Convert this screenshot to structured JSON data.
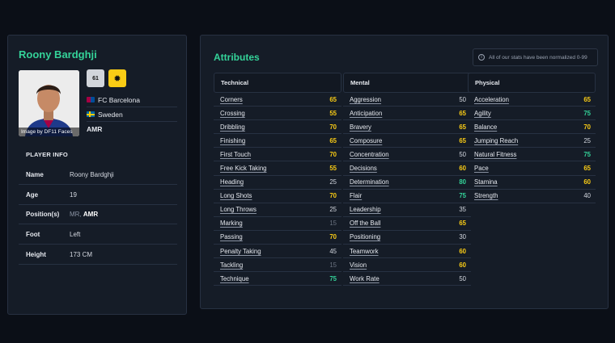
{
  "player": {
    "name": "Roony Bardghji",
    "photo_credit": "Image by DF11 Faces",
    "ovr": "61",
    "potential_icon": "star-badge-icon",
    "club": "FC Barcelona",
    "nation": "Sweden",
    "position": "AMR"
  },
  "player_info": {
    "title": "PLAYER INFO",
    "rows": [
      {
        "label": "Name",
        "value": "Roony Bardghji"
      },
      {
        "label": "Age",
        "value": "19"
      },
      {
        "label": "Position(s)",
        "value_secondary": "MR,",
        "value_primary": "AMR"
      },
      {
        "label": "Foot",
        "value": "Left"
      },
      {
        "label": "Height",
        "value": "173 CM"
      }
    ]
  },
  "attributes": {
    "title": "Attributes",
    "notice": "All of our stats have been normalized 0-99",
    "colors": {
      "high": "#34d399",
      "good": "#facc15",
      "mid": "#d4d8e0",
      "low": "#6b7280"
    },
    "columns": [
      {
        "name": "Technical",
        "items": [
          {
            "name": "Corners",
            "value": 65
          },
          {
            "name": "Crossing",
            "value": 55
          },
          {
            "name": "Dribbling",
            "value": 70
          },
          {
            "name": "Finishing",
            "value": 65
          },
          {
            "name": "First Touch",
            "value": 70
          },
          {
            "name": "Free Kick Taking",
            "value": 55
          },
          {
            "name": "Heading",
            "value": 25
          },
          {
            "name": "Long Shots",
            "value": 70
          },
          {
            "name": "Long Throws",
            "value": 25
          },
          {
            "name": "Marking",
            "value": 15
          },
          {
            "name": "Passing",
            "value": 70
          },
          {
            "name": "Penalty Taking",
            "value": 45
          },
          {
            "name": "Tackling",
            "value": 15
          },
          {
            "name": "Technique",
            "value": 75
          }
        ]
      },
      {
        "name": "Mental",
        "items": [
          {
            "name": "Aggression",
            "value": 50
          },
          {
            "name": "Anticipation",
            "value": 65
          },
          {
            "name": "Bravery",
            "value": 65
          },
          {
            "name": "Composure",
            "value": 65
          },
          {
            "name": "Concentration",
            "value": 50
          },
          {
            "name": "Decisions",
            "value": 60
          },
          {
            "name": "Determination",
            "value": 80
          },
          {
            "name": "Flair",
            "value": 75
          },
          {
            "name": "Leadership",
            "value": 35
          },
          {
            "name": "Off the Ball",
            "value": 65
          },
          {
            "name": "Positioning",
            "value": 30
          },
          {
            "name": "Teamwork",
            "value": 60
          },
          {
            "name": "Vision",
            "value": 60
          },
          {
            "name": "Work Rate",
            "value": 50
          }
        ]
      },
      {
        "name": "Physical",
        "items": [
          {
            "name": "Acceleration",
            "value": 65
          },
          {
            "name": "Agility",
            "value": 75
          },
          {
            "name": "Balance",
            "value": 70
          },
          {
            "name": "Jumping Reach",
            "value": 25
          },
          {
            "name": "Natural Fitness",
            "value": 75
          },
          {
            "name": "Pace",
            "value": 65
          },
          {
            "name": "Stamina",
            "value": 60
          },
          {
            "name": "Strength",
            "value": 40
          }
        ]
      }
    ]
  }
}
